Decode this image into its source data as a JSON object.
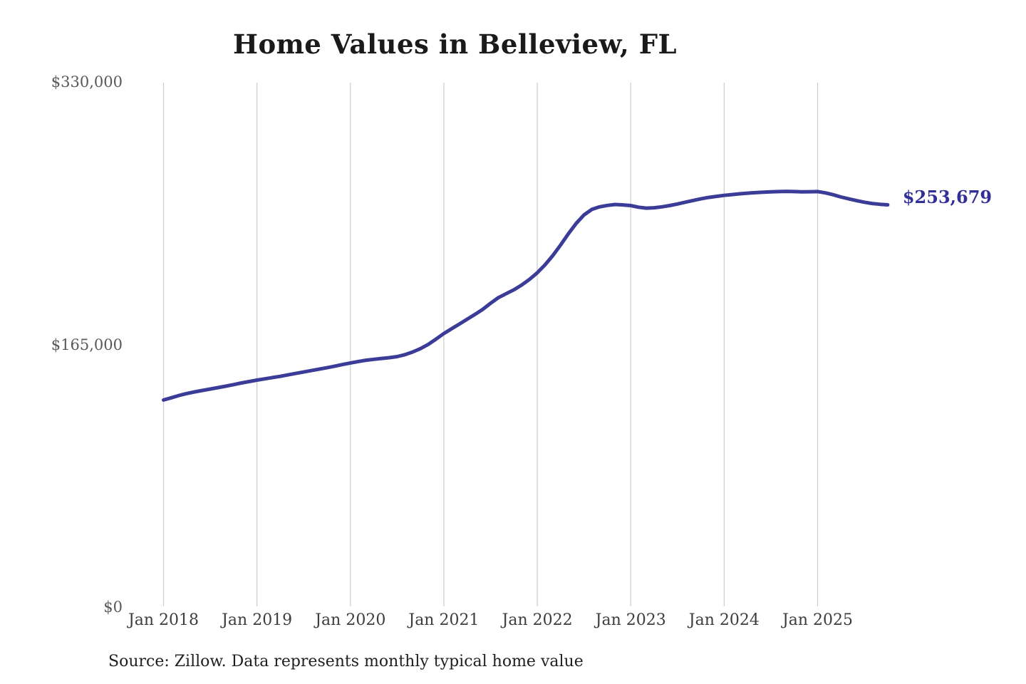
{
  "chart": {
    "title": "Home Values in Belleview, FL",
    "source_note": "Source: Zillow. Data represents monthly typical home value",
    "end_label": "$253,679",
    "line_color": "#3b3b98",
    "end_label_color": "#322f96",
    "grid_color": "#cccccc",
    "y_label_color": "#595959",
    "x_label_color": "#3d3d3d"
  },
  "chart_data": {
    "type": "line",
    "title": "Home Values in Belleview, FL",
    "unit": "USD",
    "interval": "monthly",
    "x_start": "Jan 2018",
    "x_end": "Oct 2025",
    "months": [
      "Jan 2018",
      "Feb 2018",
      "Mar 2018",
      "Apr 2018",
      "May 2018",
      "Jun 2018",
      "Jul 2018",
      "Aug 2018",
      "Sep 2018",
      "Oct 2018",
      "Nov 2018",
      "Dec 2018",
      "Jan 2019",
      "Feb 2019",
      "Mar 2019",
      "Apr 2019",
      "May 2019",
      "Jun 2019",
      "Jul 2019",
      "Aug 2019",
      "Sep 2019",
      "Oct 2019",
      "Nov 2019",
      "Dec 2019",
      "Jan 2020",
      "Feb 2020",
      "Mar 2020",
      "Apr 2020",
      "May 2020",
      "Jun 2020",
      "Jul 2020",
      "Aug 2020",
      "Sep 2020",
      "Oct 2020",
      "Nov 2020",
      "Dec 2020",
      "Jan 2021",
      "Feb 2021",
      "Mar 2021",
      "Apr 2021",
      "May 2021",
      "Jun 2021",
      "Jul 2021",
      "Aug 2021",
      "Sep 2021",
      "Oct 2021",
      "Nov 2021",
      "Dec 2021",
      "Jan 2022",
      "Feb 2022",
      "Mar 2022",
      "Apr 2022",
      "May 2022",
      "Jun 2022",
      "Jul 2022",
      "Aug 2022",
      "Sep 2022",
      "Oct 2022",
      "Nov 2022",
      "Dec 2022",
      "Jan 2023",
      "Feb 2023",
      "Mar 2023",
      "Apr 2023",
      "May 2023",
      "Jun 2023",
      "Jul 2023",
      "Aug 2023",
      "Sep 2023",
      "Oct 2023",
      "Nov 2023",
      "Dec 2023",
      "Jan 2024",
      "Feb 2024",
      "Mar 2024",
      "Apr 2024",
      "May 2024",
      "Jun 2024",
      "Jul 2024",
      "Aug 2024",
      "Sep 2024",
      "Oct 2024",
      "Nov 2024",
      "Dec 2024",
      "Jan 2025",
      "Feb 2025",
      "Mar 2025",
      "Apr 2025",
      "May 2025",
      "Jun 2025",
      "Jul 2025",
      "Aug 2025",
      "Sep 2025",
      "Oct 2025"
    ],
    "values": [
      131000,
      132400,
      133900,
      135100,
      136100,
      137000,
      137900,
      138800,
      139700,
      140700,
      141700,
      142600,
      143500,
      144300,
      145100,
      145900,
      146800,
      147700,
      148600,
      149500,
      150400,
      151300,
      152300,
      153300,
      154300,
      155200,
      156000,
      156600,
      157100,
      157600,
      158300,
      159500,
      161200,
      163300,
      166000,
      169300,
      172800,
      175800,
      178800,
      181800,
      184800,
      188000,
      191800,
      195300,
      197800,
      200300,
      203300,
      206800,
      211000,
      216000,
      221800,
      228500,
      235500,
      242000,
      247300,
      250800,
      252400,
      253300,
      253900,
      253600,
      253200,
      252200,
      251600,
      251800,
      252400,
      253200,
      254200,
      255300,
      256400,
      257400,
      258300,
      259000,
      259600,
      260100,
      260600,
      261000,
      261300,
      261600,
      261800,
      262000,
      262100,
      262000,
      261800,
      261900,
      262000,
      261200,
      260000,
      258600,
      257400,
      256300,
      255300,
      254500,
      254000,
      253679
    ],
    "final_value": 253679,
    "xlabel": "",
    "ylabel": "",
    "ylim": [
      0,
      330000
    ],
    "yticks": [
      {
        "label": "$330,000",
        "value": 330000
      },
      {
        "label": "$165,000",
        "value": 165000
      },
      {
        "label": "$0",
        "value": 0
      }
    ],
    "xticks": [
      {
        "label": "Jan 2018",
        "month_index": 0
      },
      {
        "label": "Jan 2019",
        "month_index": 12
      },
      {
        "label": "Jan 2020",
        "month_index": 24
      },
      {
        "label": "Jan 2021",
        "month_index": 36
      },
      {
        "label": "Jan 2022",
        "month_index": 48
      },
      {
        "label": "Jan 2023",
        "month_index": 60
      },
      {
        "label": "Jan 2024",
        "month_index": 72
      },
      {
        "label": "Jan 2025",
        "month_index": 84
      }
    ],
    "legend": "none",
    "grid": "vertical-only"
  }
}
